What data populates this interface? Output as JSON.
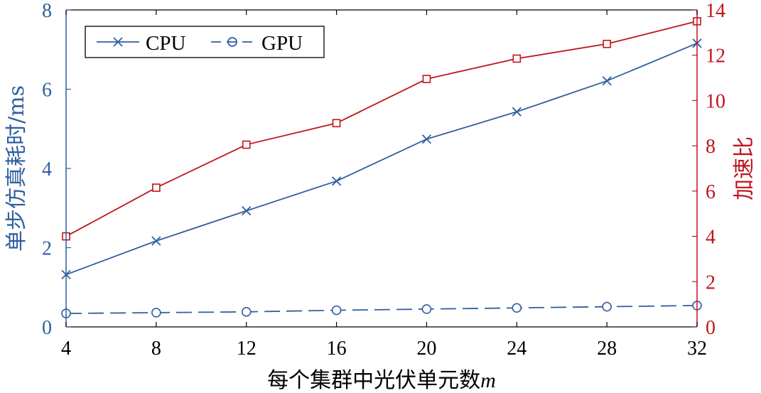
{
  "colors": {
    "cpu": "#2F5FA0",
    "gpu": "#2F5FA0",
    "speedup": "#C0141C",
    "left_axis": "#2F5FA0",
    "right_axis": "#C0141C",
    "frame": "#000000"
  },
  "chart_data": {
    "type": "line",
    "x": [
      4,
      8,
      12,
      16,
      20,
      24,
      28,
      32
    ],
    "xlabel": "每个集群中光伏单元数",
    "xlabel_var": "m",
    "ylabel_left": "单步仿真耗时/ms",
    "ylabel_right": "加速比",
    "xlim": [
      4,
      32
    ],
    "ylim_left": [
      0,
      8
    ],
    "ylim_right": [
      0,
      14
    ],
    "x_ticks": [
      "4",
      "8",
      "12",
      "16",
      "20",
      "24",
      "28",
      "32"
    ],
    "y_ticks_left": [
      "0",
      "2",
      "4",
      "6",
      "8"
    ],
    "y_ticks_right": [
      "0",
      "2",
      "4",
      "6",
      "8",
      "10",
      "12",
      "14"
    ],
    "grid": false,
    "legend_position": "top-left",
    "series": [
      {
        "name": "CPU",
        "axis": "left",
        "marker": "x",
        "dash": "solid",
        "values": [
          1.32,
          2.17,
          2.93,
          3.68,
          4.74,
          5.43,
          6.21,
          7.16
        ]
      },
      {
        "name": "GPU",
        "axis": "left",
        "marker": "o",
        "dash": "dashed",
        "values": [
          0.34,
          0.36,
          0.38,
          0.42,
          0.45,
          0.48,
          0.51,
          0.54
        ]
      },
      {
        "axis": "right",
        "marker": "s",
        "dash": "solid",
        "values": [
          4.0,
          6.15,
          8.05,
          9.0,
          10.95,
          11.85,
          12.5,
          13.5
        ]
      }
    ]
  }
}
